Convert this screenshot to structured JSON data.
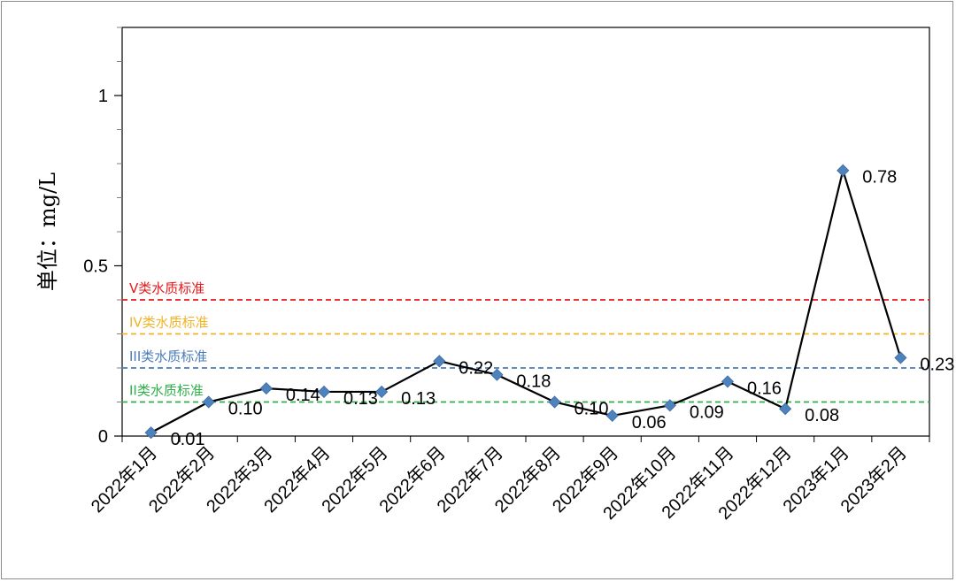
{
  "chart_data": {
    "type": "line",
    "title": "",
    "xlabel": "",
    "ylabel": "单位：mg/L",
    "ylim": [
      0,
      1.2
    ],
    "yticks": [
      0,
      0.5,
      1
    ],
    "ytick_labels": [
      "0",
      "0.5",
      "1"
    ],
    "grid": false,
    "categories": [
      "2022年1月",
      "2022年2月",
      "2022年3月",
      "2022年4月",
      "2022年5月",
      "2022年6月",
      "2022年7月",
      "2022年8月",
      "2022年9月",
      "2022年10月",
      "2022年11月",
      "2022年12月",
      "2023年1月",
      "2023年2月"
    ],
    "series": [
      {
        "values": [
          0.01,
          0.1,
          0.14,
          0.13,
          0.13,
          0.22,
          0.18,
          0.1,
          0.06,
          0.09,
          0.16,
          0.08,
          0.78,
          0.23
        ],
        "labels": [
          "0.01",
          "0.10",
          "0.14",
          "0.13",
          "0.13",
          "0.22",
          "0.18",
          "0.10",
          "0.06",
          "0.09",
          "0.16",
          "0.08",
          "0.78",
          "0.23"
        ],
        "line_color": "#000000",
        "marker": "diamond",
        "marker_color": "#4f81bd"
      }
    ],
    "reference_lines": [
      {
        "label": "V类水质标准",
        "value": 0.4,
        "color": "#e41a1c"
      },
      {
        "label": "IV类水质标准",
        "value": 0.3,
        "color": "#f0b429"
      },
      {
        "label": "III类水质标准",
        "value": 0.2,
        "color": "#4a7db8"
      },
      {
        "label": "II类水质标准",
        "value": 0.1,
        "color": "#2fb04a"
      }
    ]
  }
}
